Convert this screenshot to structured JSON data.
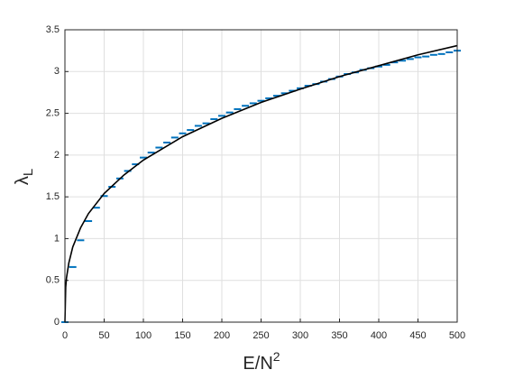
{
  "chart_data": {
    "type": "scatter",
    "xlabel": "E/N",
    "xlabel_sup": "2",
    "ylabel": "λ",
    "ylabel_sub": "L",
    "xlim": [
      0,
      500
    ],
    "xticks": [
      0,
      50,
      100,
      150,
      200,
      250,
      300,
      350,
      400,
      450,
      500
    ],
    "ylim": [
      0,
      3.5
    ],
    "yticks": [
      0,
      0.5,
      1,
      1.5,
      2,
      2.5,
      3,
      3.5
    ],
    "grid": true,
    "series": [
      {
        "type": "scatter",
        "color": "#0072bd",
        "x": [
          0,
          10,
          20,
          30,
          40,
          50,
          60,
          70,
          80,
          90,
          100,
          110,
          120,
          130,
          140,
          150,
          160,
          170,
          180,
          190,
          200,
          210,
          220,
          230,
          240,
          250,
          260,
          270,
          280,
          290,
          300,
          310,
          320,
          330,
          340,
          350,
          360,
          370,
          380,
          390,
          400,
          410,
          420,
          430,
          440,
          450,
          460,
          470,
          480,
          490,
          500
        ],
        "values": [
          0,
          0.66,
          0.98,
          1.21,
          1.37,
          1.51,
          1.62,
          1.72,
          1.81,
          1.89,
          1.97,
          2.03,
          2.09,
          2.15,
          2.21,
          2.26,
          2.3,
          2.35,
          2.38,
          2.43,
          2.47,
          2.51,
          2.55,
          2.59,
          2.62,
          2.65,
          2.68,
          2.71,
          2.74,
          2.77,
          2.8,
          2.83,
          2.85,
          2.88,
          2.91,
          2.94,
          2.97,
          2.99,
          3.02,
          3.04,
          3.06,
          3.08,
          3.11,
          3.13,
          3.15,
          3.17,
          3.18,
          3.2,
          3.21,
          3.23,
          3.25
        ]
      },
      {
        "type": "line",
        "color": "#000000",
        "x": [
          0,
          1,
          2,
          5,
          10,
          20,
          30,
          50,
          75,
          100,
          150,
          200,
          250,
          300,
          350,
          400,
          450,
          500
        ],
        "values": [
          0,
          0.42,
          0.53,
          0.71,
          0.9,
          1.13,
          1.3,
          1.54,
          1.76,
          1.94,
          2.22,
          2.44,
          2.63,
          2.79,
          2.94,
          3.07,
          3.2,
          3.31
        ]
      }
    ]
  }
}
